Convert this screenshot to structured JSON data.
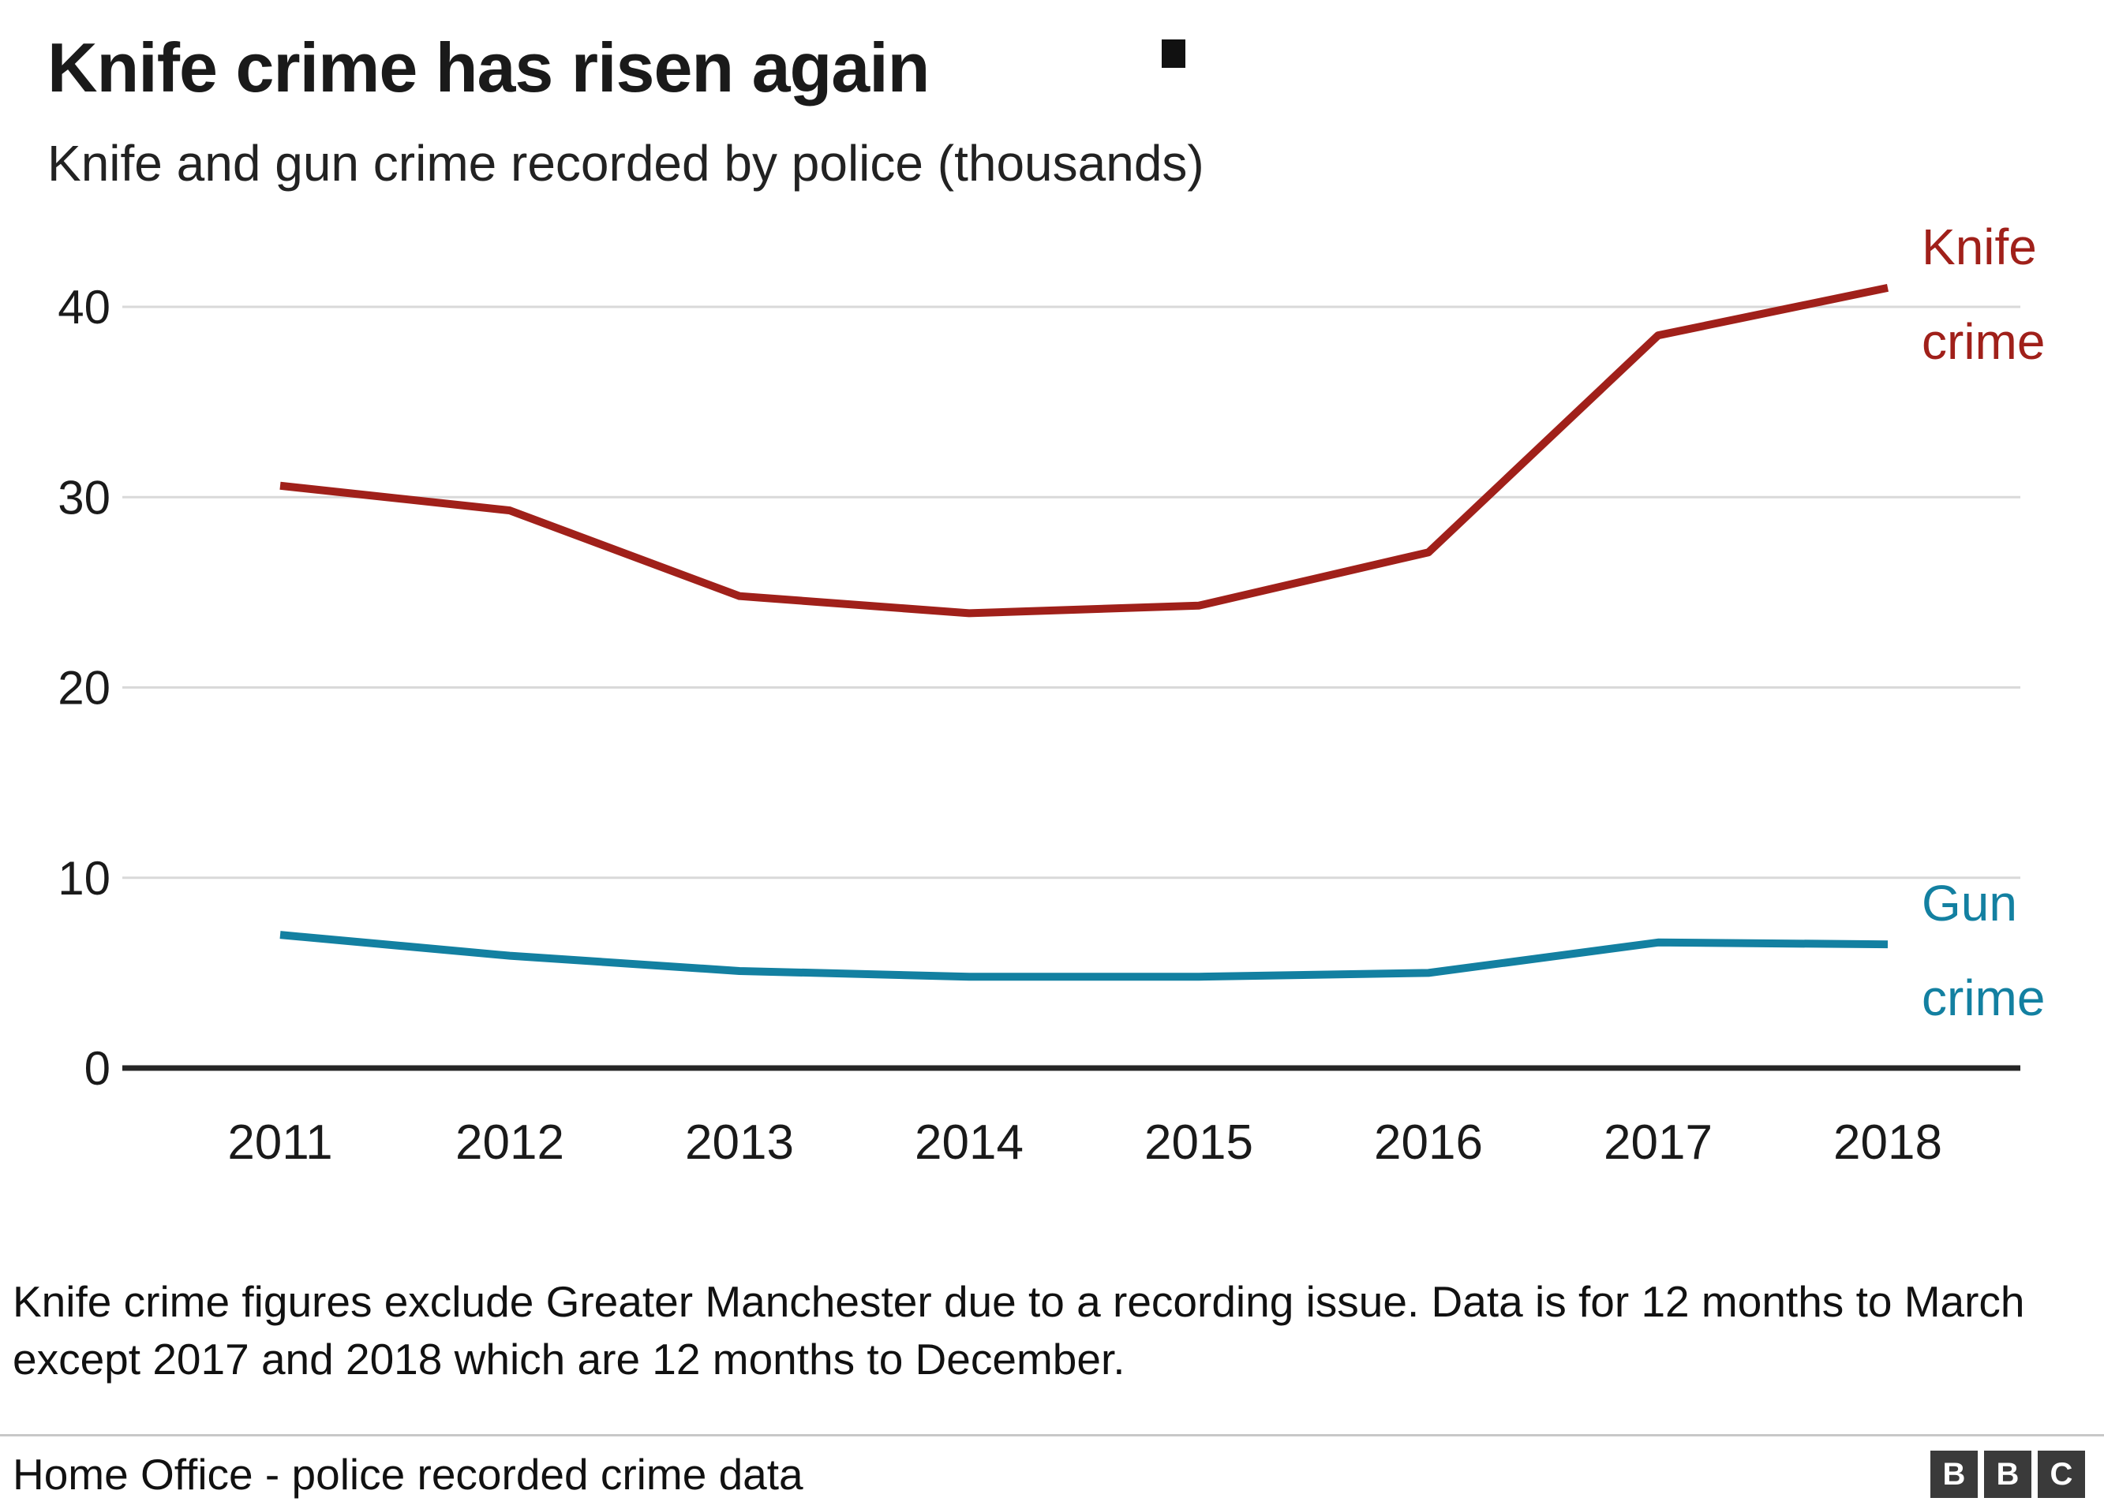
{
  "title": "Knife crime has risen again",
  "subtitle": "Knife and gun crime recorded by police (thousands)",
  "chart_data": {
    "type": "line",
    "categories": [
      "2011",
      "2012",
      "2013",
      "2014",
      "2015",
      "2016",
      "2017",
      "2018"
    ],
    "series": [
      {
        "name": "Knife crime",
        "label_lines": [
          "Knife",
          "crime"
        ],
        "color": "#a0201a",
        "values": [
          30.6,
          29.3,
          24.8,
          23.9,
          24.3,
          27.1,
          38.5,
          41.0
        ]
      },
      {
        "name": "Gun crime",
        "label_lines": [
          "Gun",
          "crime"
        ],
        "color": "#1380a1",
        "values": [
          7.0,
          5.9,
          5.1,
          4.8,
          4.8,
          5.0,
          6.6,
          6.5
        ]
      }
    ],
    "title": "Knife crime has risen again",
    "xlabel": "",
    "ylabel": "Knife and gun crime recorded by police (thousands)",
    "ylim": [
      0,
      43
    ],
    "yticks": [
      0,
      10,
      20,
      30,
      40
    ],
    "grid": true,
    "legend_position": "right-of-line-end"
  },
  "footnote": "Knife crime figures exclude Greater Manchester due to a recording issue. Data is for 12 months to March except 2017 and 2018 which are 12 months to December.",
  "source": "Home Office - police recorded crime data",
  "logo": {
    "letters": [
      "B",
      "B",
      "C"
    ]
  }
}
